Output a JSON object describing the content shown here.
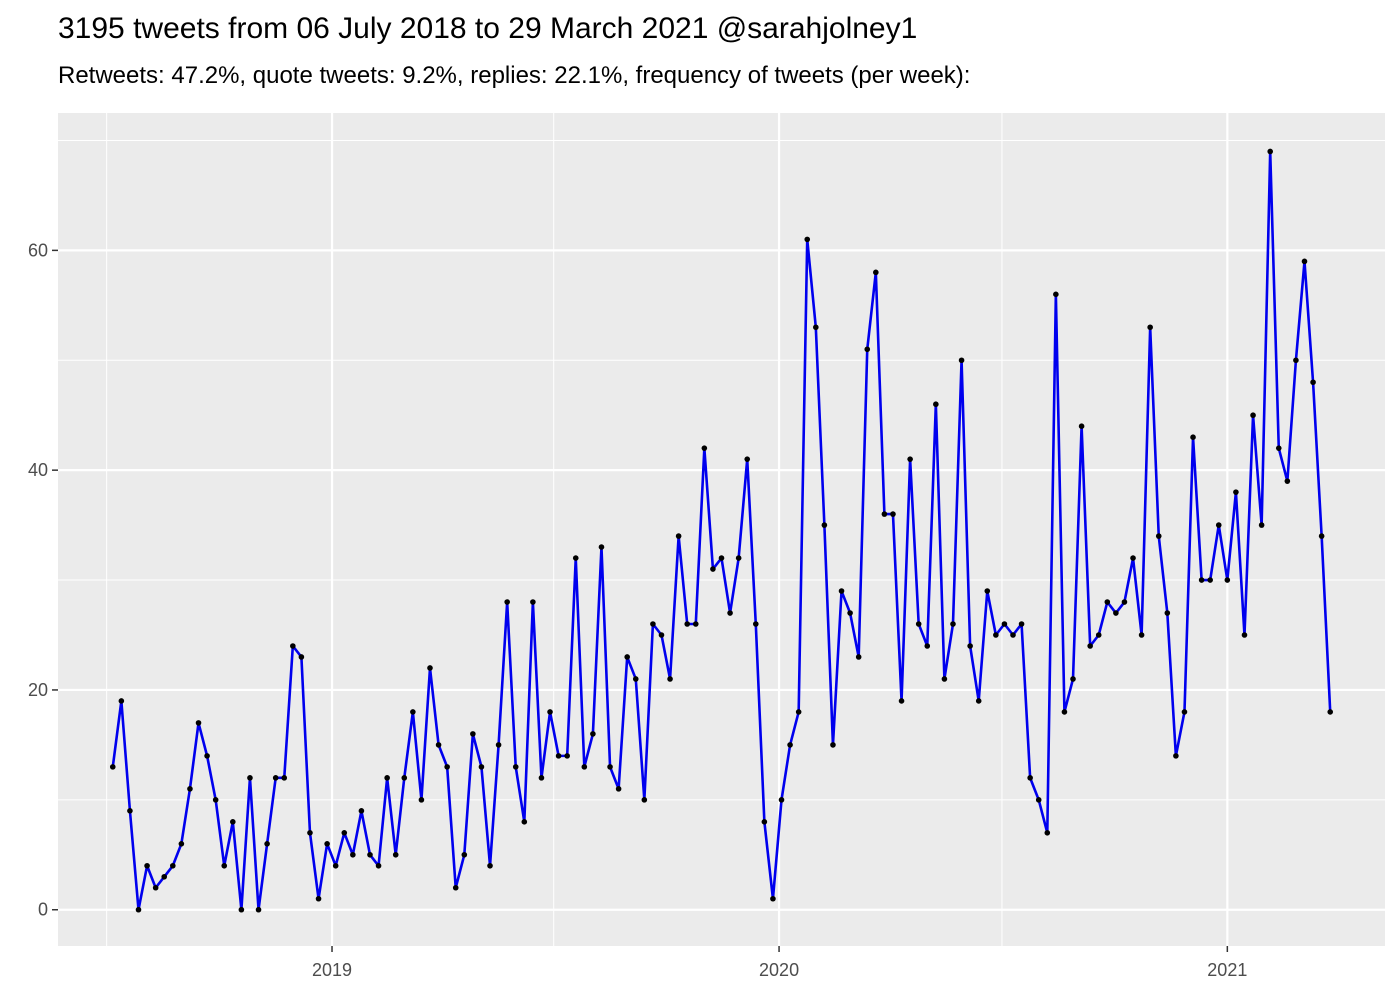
{
  "chart_data": {
    "type": "line",
    "title": "3195 tweets from 06 July 2018 to 29 March 2021 @sarahjolney1",
    "subtitle": "Retweets: 47.2%, quote tweets: 9.2%, replies: 22.1%, frequency of tweets (per week):",
    "xlabel": "",
    "ylabel": "",
    "start_date": "2018-07-06",
    "x_tick_labels": [
      "2019",
      "2020",
      "2021"
    ],
    "y_ticks": [
      0,
      20,
      40,
      60
    ],
    "ylim": [
      -3.3,
      72.5
    ],
    "grid": true,
    "legend": "none",
    "line_color": "#0000EE",
    "point_color": "#000000",
    "panel_color": "#EBEBEB",
    "values": [
      13,
      19,
      9,
      0,
      4,
      2,
      3,
      4,
      6,
      11,
      17,
      14,
      10,
      4,
      8,
      0,
      12,
      0,
      6,
      12,
      12,
      24,
      23,
      7,
      1,
      6,
      4,
      7,
      5,
      9,
      5,
      4,
      12,
      5,
      12,
      18,
      10,
      22,
      15,
      13,
      2,
      5,
      16,
      13,
      4,
      15,
      28,
      13,
      8,
      28,
      12,
      18,
      14,
      14,
      32,
      13,
      16,
      33,
      13,
      11,
      23,
      21,
      10,
      26,
      25,
      21,
      34,
      26,
      26,
      42,
      31,
      32,
      27,
      32,
      41,
      26,
      8,
      1,
      10,
      15,
      18,
      61,
      53,
      35,
      15,
      29,
      27,
      23,
      51,
      58,
      36,
      36,
      19,
      41,
      26,
      24,
      46,
      21,
      26,
      50,
      24,
      19,
      29,
      25,
      26,
      25,
      26,
      12,
      10,
      7,
      56,
      18,
      21,
      44,
      24,
      25,
      28,
      27,
      28,
      32,
      25,
      53,
      34,
      27,
      14,
      18,
      43,
      30,
      30,
      35,
      30,
      38,
      25,
      45,
      35,
      69,
      42,
      39,
      50,
      59,
      48,
      34,
      18
    ]
  }
}
